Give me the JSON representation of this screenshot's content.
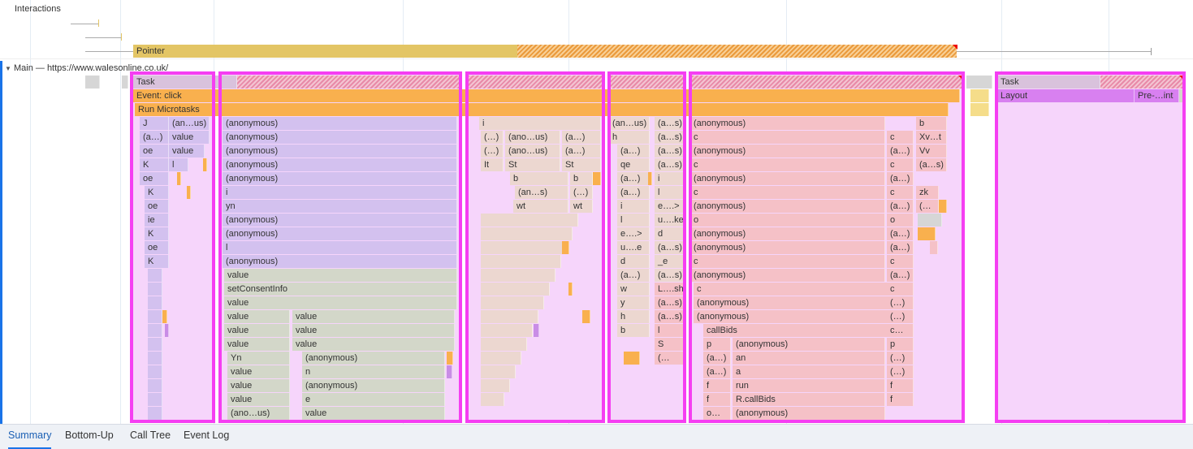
{
  "interactions": {
    "label": "Interactions",
    "pointer_label": "Pointer"
  },
  "main": {
    "label": "Main — https://www.walesonline.co.uk/",
    "expand_icon": "triangle-down-icon"
  },
  "flame": {
    "task": "Task",
    "event": "Event: click",
    "microtasks": "Run Microtasks",
    "task2": "Task",
    "layout": "Layout",
    "prepaint": "Pre-…int",
    "col1a": [
      "J",
      "(a…)",
      "oe",
      "K",
      "oe",
      "K",
      "oe",
      "ie",
      "K",
      "oe",
      "K"
    ],
    "col1b": [
      "(an…us)",
      "value",
      "value",
      "l"
    ],
    "col2": [
      "(anonymous)",
      "(anonymous)",
      "(anonymous)",
      "(anonymous)",
      "(anonymous)",
      "i",
      "yn",
      "(anonymous)",
      "(anonymous)",
      "l",
      "(anonymous)",
      "value",
      "setConsentInfo",
      "value"
    ],
    "col2a": [
      "value",
      "value",
      "value",
      "Yn",
      "value",
      "value",
      "value",
      "(ano…us)"
    ],
    "col2b": [
      "value",
      "value",
      "value",
      "(anonymous)",
      "n",
      "(anonymous)",
      "e",
      "value"
    ],
    "col3": [
      "i",
      "(…)",
      "(ano…us)",
      "(a…)",
      "(…)",
      "(ano…us)",
      "(a…)",
      "It",
      "St",
      "St",
      "b",
      "b",
      "(an…s)",
      "(…)",
      "wt",
      "wt"
    ],
    "col4a": [
      "(an…us)",
      "h",
      "(a…)",
      "qe",
      "(a…)",
      "(a…)",
      "i",
      "l",
      "e….>",
      "u….e",
      "d",
      "(a…)",
      "w",
      "y",
      "h",
      "b"
    ],
    "col4b": [
      "(a…s)",
      "(a…s)",
      "(a…s)",
      "(a…s)",
      "i",
      "l",
      "e….>",
      "u….ke",
      "d",
      "(a…s)",
      "_e",
      "(a…s)",
      "L….sh",
      "(a…s)",
      "(a…s)",
      "l",
      "S",
      "(…"
    ],
    "col5": [
      "(anonymous)",
      "c",
      "(anonymous)",
      "c",
      "(anonymous)",
      "c",
      "(anonymous)",
      "o",
      "(anonymous)",
      "(anonymous)",
      "c",
      "(anonymous)",
      "c",
      "(anonymous)",
      "(anonymous)",
      "callBids"
    ],
    "col5p": [
      "p",
      "(a…)",
      "(a…)",
      "f",
      "f",
      "o…"
    ],
    "col5q": [
      "(anonymous)",
      "an",
      "a",
      "run",
      "R.callBids",
      "(anonymous)"
    ],
    "col5r": [
      "b",
      "c",
      "(a…)",
      "c",
      "(a…)",
      "c",
      "(a…)",
      "o",
      "(a…)",
      "(a…)",
      "c",
      "(a…)",
      "c",
      "(…)",
      "(…)",
      "c…",
      "p",
      "(…)",
      "(…)",
      "f",
      "f"
    ],
    "col5s": [
      "Xv…t",
      "Vv",
      "(a…s)",
      "zk",
      "(…"
    ]
  },
  "bottom_tabs": [
    {
      "label": "Summary",
      "active": true
    },
    {
      "label": "Bottom-Up",
      "active": false
    },
    {
      "label": "Call Tree",
      "active": false
    },
    {
      "label": "Event Log",
      "active": false
    }
  ],
  "colors": {
    "highlight": "#f53ef2",
    "accent": "#1a73e8",
    "event": "#f9b04e",
    "pointer": "#e3c565"
  }
}
